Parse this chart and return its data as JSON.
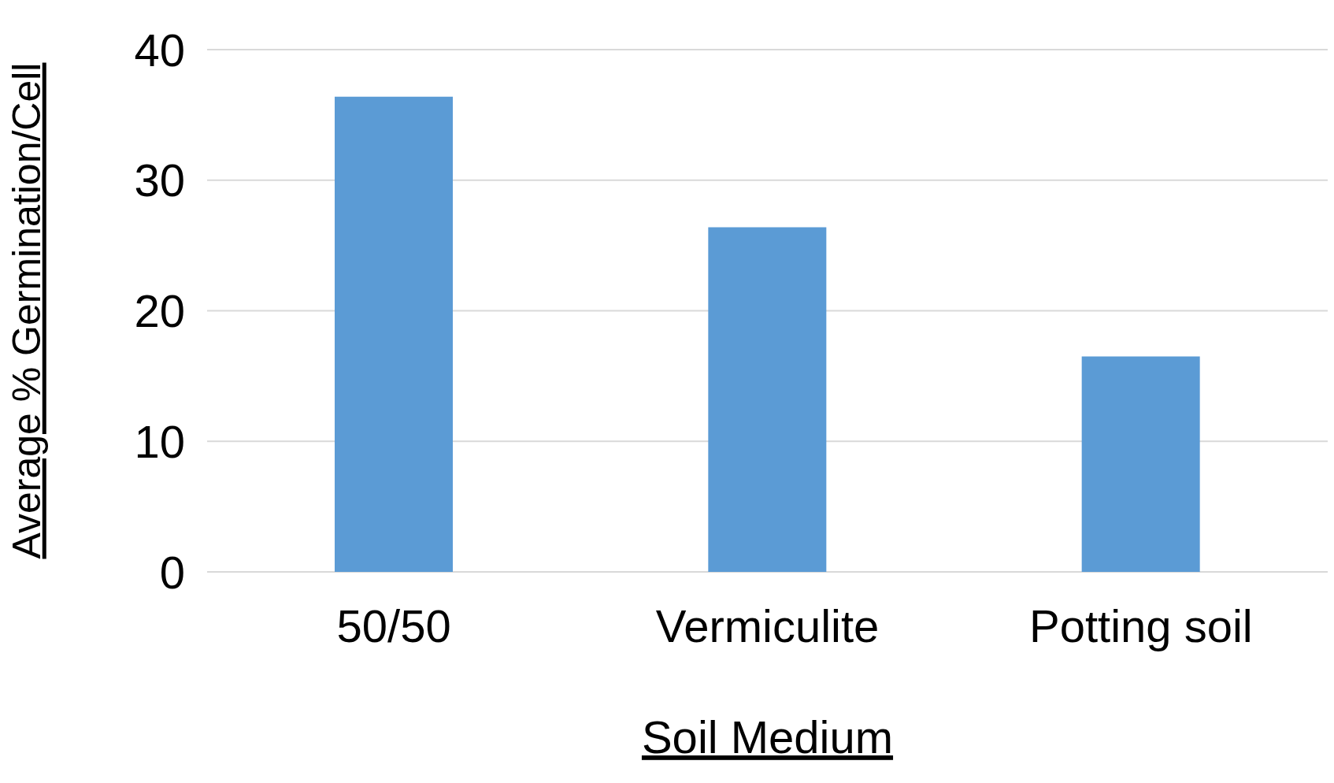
{
  "chart_data": {
    "type": "bar",
    "xlabel": "Soil Medium",
    "ylabel": "Average % Germination/Cell",
    "categories": [
      "50/50",
      "Vermiculite",
      "Potting soil"
    ],
    "values": [
      36.4,
      26.4,
      16.5
    ],
    "color": "#5b9bd5",
    "ylim": [
      0,
      40
    ],
    "yticks": [
      0,
      10,
      20,
      30,
      40
    ],
    "grid": "y"
  }
}
